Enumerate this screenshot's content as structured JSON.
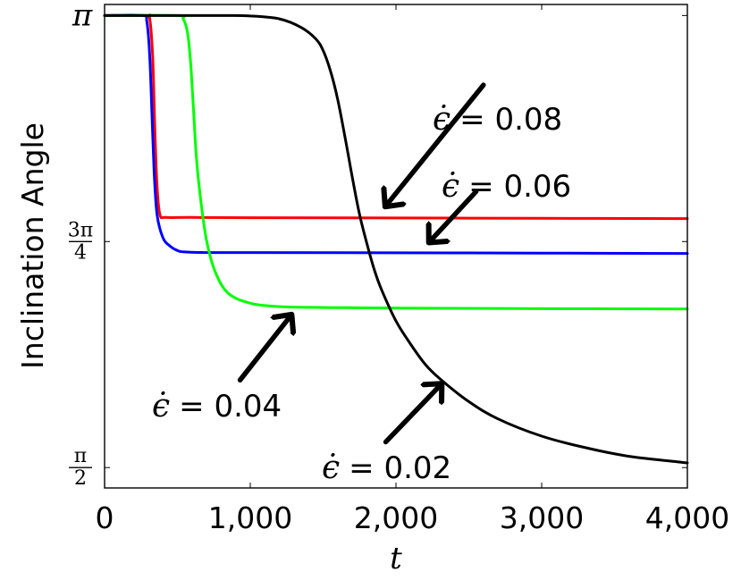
{
  "chart_data": {
    "type": "line",
    "xlabel": "t",
    "ylabel": "Inclination Angle",
    "xlim": [
      0,
      4000
    ],
    "ylim": [
      1.5,
      3.18
    ],
    "xticks": [
      {
        "value": 0,
        "label": "0"
      },
      {
        "value": 1000,
        "label": "1,000"
      },
      {
        "value": 2000,
        "label": "2,000"
      },
      {
        "value": 3000,
        "label": "3,000"
      },
      {
        "value": 4000,
        "label": "4,000"
      }
    ],
    "yticks": [
      {
        "value": 1.5708,
        "num": "π",
        "den": "2",
        "kind": "frac"
      },
      {
        "value": 2.3562,
        "num": "3π",
        "den": "4",
        "kind": "frac"
      },
      {
        "value": 3.1416,
        "label": "π",
        "kind": "plain"
      }
    ],
    "grid": false,
    "legend": "none",
    "series": [
      {
        "color": "#ff0000",
        "x": [
          0,
          280,
          310,
          330,
          345,
          360,
          380,
          420,
          600,
          1000,
          2000,
          3000,
          4000
        ],
        "y": [
          3.1416,
          3.1416,
          3.13,
          3.0,
          2.75,
          2.55,
          2.45,
          2.44,
          2.44,
          2.439,
          2.438,
          2.437,
          2.436
        ]
      },
      {
        "color": "#0000ff",
        "x": [
          0,
          260,
          290,
          310,
          325,
          340,
          360,
          400,
          450,
          500,
          550,
          700,
          1000,
          2000,
          3000,
          4000
        ],
        "y": [
          3.1416,
          3.1416,
          3.12,
          3.0,
          2.8,
          2.6,
          2.45,
          2.37,
          2.34,
          2.325,
          2.32,
          2.318,
          2.318,
          2.317,
          2.316,
          2.315
        ]
      },
      {
        "color": "#00ff00",
        "x": [
          0,
          500,
          540,
          570,
          590,
          610,
          630,
          660,
          700,
          760,
          850,
          1000,
          1200,
          1500,
          2000,
          3000,
          4000
        ],
        "y": [
          3.1416,
          3.1416,
          3.13,
          3.08,
          2.98,
          2.82,
          2.65,
          2.5,
          2.36,
          2.25,
          2.176,
          2.142,
          2.13,
          2.127,
          2.125,
          2.123,
          2.122
        ]
      },
      {
        "color": "#000000",
        "x": [
          0,
          800,
          1000,
          1200,
          1350,
          1450,
          1500,
          1550,
          1600,
          1650,
          1700,
          1750,
          1800,
          1850,
          1900,
          2000,
          2100,
          2200,
          2300,
          2500,
          2700,
          3000,
          3300,
          3600,
          4000
        ],
        "y": [
          3.1416,
          3.1416,
          3.14,
          3.13,
          3.1,
          3.06,
          3.02,
          2.95,
          2.85,
          2.72,
          2.58,
          2.45,
          2.35,
          2.26,
          2.19,
          2.08,
          2.0,
          1.93,
          1.88,
          1.8,
          1.74,
          1.68,
          1.64,
          1.61,
          1.587
        ]
      }
    ],
    "annotations": [
      {
        "eps": "ϵ̇",
        "text": "= 0.08",
        "tail": [
          2600,
          2.9
        ],
        "head": [
          1930,
          2.48
        ]
      },
      {
        "eps": "ϵ̇",
        "text": "= 0.06",
        "tail": [
          2550,
          2.53
        ],
        "head": [
          2230,
          2.355
        ]
      },
      {
        "eps": "ϵ̇",
        "text": "= 0.04",
        "tail": [
          930,
          1.875
        ],
        "head": [
          1280,
          2.1
        ]
      },
      {
        "eps": "ϵ̇",
        "text": "= 0.02",
        "tail": [
          1930,
          1.66
        ],
        "head": [
          2310,
          1.86
        ]
      }
    ]
  }
}
